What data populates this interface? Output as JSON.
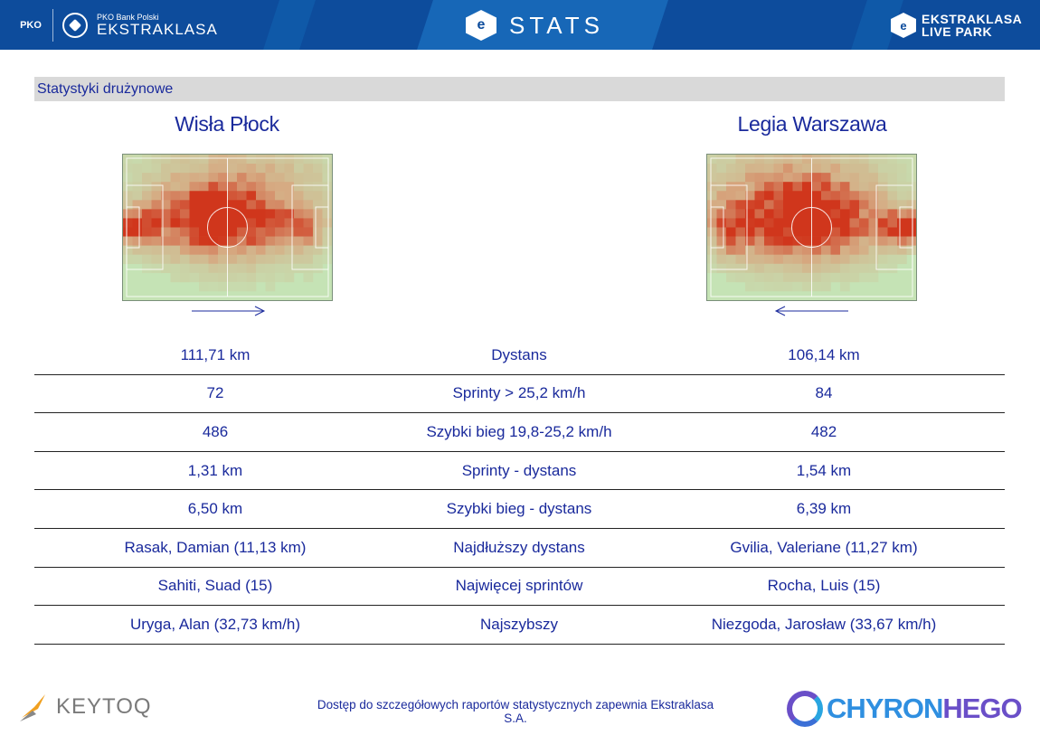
{
  "header": {
    "left_brand_small": "PKO Bank Polski",
    "left_brand_big": "EKSTRAKLASA",
    "left_logo_text": "PKO",
    "center_title": "STATS",
    "right_line1": "EKSTRAKLASA",
    "right_line2": "LIVE PARK"
  },
  "section": {
    "title": "Statystyki drużynowe"
  },
  "teams": {
    "home": {
      "name": "Wisła Płock",
      "attack_direction": "right"
    },
    "away": {
      "name": "Legia Warszawa",
      "attack_direction": "left"
    }
  },
  "stats": [
    {
      "label": "Dystans",
      "home": "111,71 km",
      "away": "106,14 km"
    },
    {
      "label": "Sprinty > 25,2 km/h",
      "home": "72",
      "away": "84"
    },
    {
      "label": "Szybki bieg 19,8-25,2 km/h",
      "home": "486",
      "away": "482"
    },
    {
      "label": "Sprinty - dystans",
      "home": "1,31 km",
      "away": "1,54 km"
    },
    {
      "label": "Szybki bieg - dystans",
      "home": "6,50 km",
      "away": "6,39 km"
    },
    {
      "label": "Najdłuższy dystans",
      "home": "Rasak, Damian (11,13 km)",
      "away": "Gvilia, Valeriane (11,27 km)"
    },
    {
      "label": "Najwięcej sprintów",
      "home": "Sahiti, Suad (15)",
      "away": "Rocha, Luis (15)"
    },
    {
      "label": "Najszybszy",
      "home": "Uryga, Alan (32,73 km/h)",
      "away": "Niezgoda, Jarosław (33,67 km/h)"
    }
  ],
  "footer": {
    "note": "Dostęp do szczegółowych raportów statystycznych zapewnia Ekstraklasa S.A.",
    "left_logo": "KEYTOQ",
    "right_logo_part1": "CHYRON",
    "right_logo_part2": "HEGO"
  },
  "colors": {
    "header_bg": "#0d4c9c",
    "text_blue": "#1a2a9c",
    "pitch_bg": "#c5e3b5",
    "heat_high": "#d0361c"
  }
}
